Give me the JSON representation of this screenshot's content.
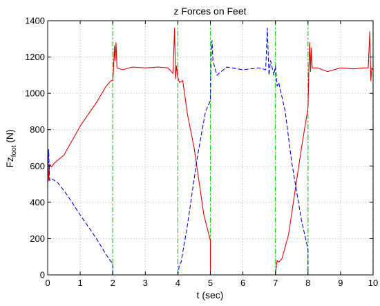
{
  "chart_data": {
    "type": "line",
    "title": "z Forces on Feet",
    "xlabel": "t (sec)",
    "ylabel": {
      "main": "Fz",
      "sub": "foot",
      "unit": " (N)"
    },
    "xlim": [
      0,
      10
    ],
    "ylim": [
      0,
      1400
    ],
    "xticks": [
      "0",
      "1",
      "2",
      "3",
      "4",
      "5",
      "6",
      "7",
      "8",
      "9",
      "10"
    ],
    "yticks": [
      "0",
      "200",
      "400",
      "600",
      "800",
      "1000",
      "1200",
      "1400"
    ],
    "grid": true,
    "event_lines": {
      "color": "#00dd00",
      "x": [
        2,
        4,
        5,
        7,
        8,
        10
      ]
    },
    "series": [
      {
        "color": "#e00000",
        "style": "solid",
        "points": [
          [
            0,
            690
          ],
          [
            0.03,
            520
          ],
          [
            0.06,
            610
          ],
          [
            0.12,
            595
          ],
          [
            0.2,
            615
          ],
          [
            0.5,
            660
          ],
          [
            1.0,
            820
          ],
          [
            1.5,
            950
          ],
          [
            1.8,
            1040
          ],
          [
            1.95,
            1070
          ],
          [
            2.0,
            1070
          ],
          [
            2.02,
            1120
          ],
          [
            2.05,
            1260
          ],
          [
            2.07,
            1180
          ],
          [
            2.1,
            1280
          ],
          [
            2.13,
            1140
          ],
          [
            2.3,
            1130
          ],
          [
            2.6,
            1145
          ],
          [
            3.0,
            1140
          ],
          [
            3.4,
            1145
          ],
          [
            3.7,
            1140
          ],
          [
            3.85,
            1110
          ],
          [
            3.9,
            1360
          ],
          [
            3.93,
            1080
          ],
          [
            3.96,
            1150
          ],
          [
            4.0,
            1090
          ],
          [
            4.05,
            1060
          ],
          [
            4.15,
            1070
          ],
          [
            4.3,
            880
          ],
          [
            4.5,
            700
          ],
          [
            4.8,
            330
          ],
          [
            5.0,
            190
          ],
          [
            5.0,
            0
          ],
          [
            7.0,
            0
          ],
          [
            7.05,
            80
          ],
          [
            7.1,
            70
          ],
          [
            7.2,
            90
          ],
          [
            7.4,
            220
          ],
          [
            7.6,
            460
          ],
          [
            7.8,
            700
          ],
          [
            8.0,
            920
          ],
          [
            8.02,
            1080
          ],
          [
            8.05,
            1280
          ],
          [
            8.08,
            1120
          ],
          [
            8.1,
            1250
          ],
          [
            8.13,
            1140
          ],
          [
            8.3,
            1140
          ],
          [
            8.6,
            1120
          ],
          [
            9.0,
            1140
          ],
          [
            9.4,
            1135
          ],
          [
            9.7,
            1140
          ],
          [
            9.85,
            1140
          ],
          [
            9.9,
            1340
          ],
          [
            9.93,
            1070
          ],
          [
            9.96,
            1140
          ],
          [
            10.0,
            1130
          ]
        ]
      },
      {
        "color": "#0000dd",
        "style": "dashed",
        "points": [
          [
            0,
            500
          ],
          [
            0.03,
            690
          ],
          [
            0.06,
            520
          ],
          [
            0.12,
            530
          ],
          [
            0.3,
            510
          ],
          [
            0.6,
            440
          ],
          [
            1.0,
            330
          ],
          [
            1.5,
            200
          ],
          [
            1.8,
            110
          ],
          [
            2.0,
            60
          ],
          [
            2.0,
            0
          ],
          [
            4.0,
            0
          ],
          [
            4.05,
            60
          ],
          [
            4.1,
            70
          ],
          [
            4.3,
            280
          ],
          [
            4.6,
            650
          ],
          [
            4.85,
            900
          ],
          [
            5.0,
            960
          ],
          [
            5.02,
            1200
          ],
          [
            5.05,
            1290
          ],
          [
            5.08,
            1180
          ],
          [
            5.2,
            1100
          ],
          [
            5.5,
            1145
          ],
          [
            6.0,
            1130
          ],
          [
            6.5,
            1140
          ],
          [
            6.7,
            1130
          ],
          [
            6.75,
            1360
          ],
          [
            6.8,
            1100
          ],
          [
            6.85,
            1180
          ],
          [
            6.9,
            1140
          ],
          [
            6.95,
            1100
          ],
          [
            7.0,
            1150
          ],
          [
            7.05,
            1040
          ],
          [
            7.1,
            1060
          ],
          [
            7.3,
            900
          ],
          [
            7.5,
            620
          ],
          [
            7.8,
            300
          ],
          [
            8.0,
            140
          ],
          [
            8.0,
            0
          ],
          [
            10.0,
            0
          ]
        ]
      }
    ]
  }
}
